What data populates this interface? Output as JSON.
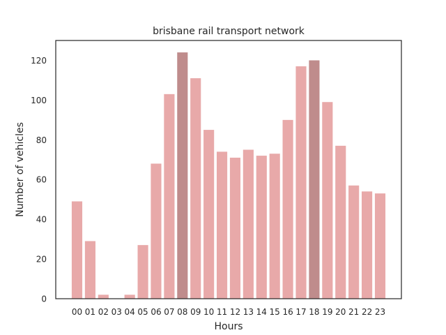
{
  "chart_data": {
    "type": "bar",
    "title": "brisbane rail transport network",
    "xlabel": "Hours",
    "ylabel": "Number of vehicles",
    "categories": [
      "00",
      "01",
      "02",
      "03",
      "04",
      "05",
      "06",
      "07",
      "08",
      "09",
      "10",
      "11",
      "12",
      "13",
      "14",
      "15",
      "16",
      "17",
      "18",
      "19",
      "20",
      "21",
      "22",
      "23"
    ],
    "values": [
      49,
      29,
      2,
      0,
      2,
      27,
      68,
      103,
      124,
      111,
      85,
      74,
      71,
      75,
      72,
      73,
      90,
      117,
      120,
      99,
      77,
      57,
      54,
      53
    ],
    "highlighted": [
      "08",
      "18"
    ],
    "ylim": [
      0,
      130
    ],
    "yticks": [
      0,
      20,
      40,
      60,
      80,
      100,
      120
    ],
    "grid": false,
    "colors": {
      "bar": "#e8a9a9",
      "highlight": "#bf8c8c",
      "axis": "#262626"
    }
  }
}
